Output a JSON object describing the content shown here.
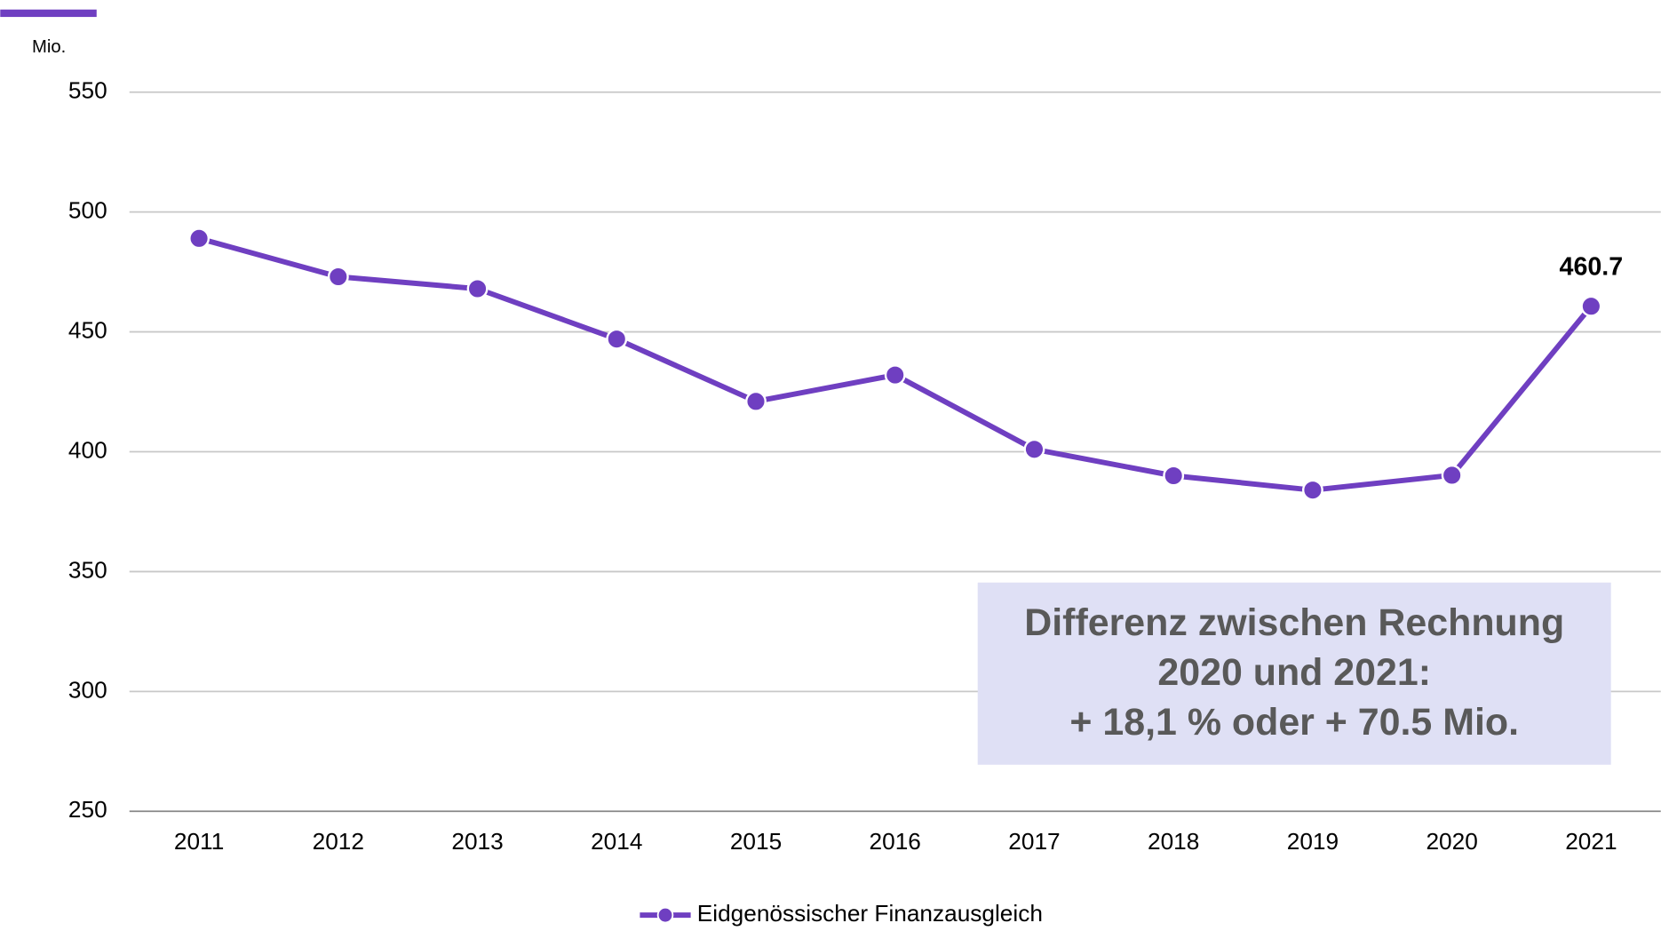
{
  "chart_data": {
    "type": "line",
    "y_unit": "Mio.",
    "categories": [
      "2011",
      "2012",
      "2013",
      "2014",
      "2015",
      "2016",
      "2017",
      "2018",
      "2019",
      "2020",
      "2021"
    ],
    "series": [
      {
        "name": "Eidgenössischer Finanzausgleich",
        "color": "#6f3fc1",
        "values": [
          489,
          473,
          468,
          447,
          421,
          432,
          401,
          390,
          384,
          390.2,
          460.7
        ]
      }
    ],
    "labeled_point": 10,
    "ylim": [
      250,
      550
    ],
    "yticks": [
      250,
      300,
      350,
      400,
      450,
      500,
      550
    ],
    "grid": true,
    "annotation": [
      "Differenz zwischen Rechnung",
      "2020 und 2021:",
      "+ 18,1 % oder + 70.5 Mio."
    ],
    "legend": "bottom"
  }
}
